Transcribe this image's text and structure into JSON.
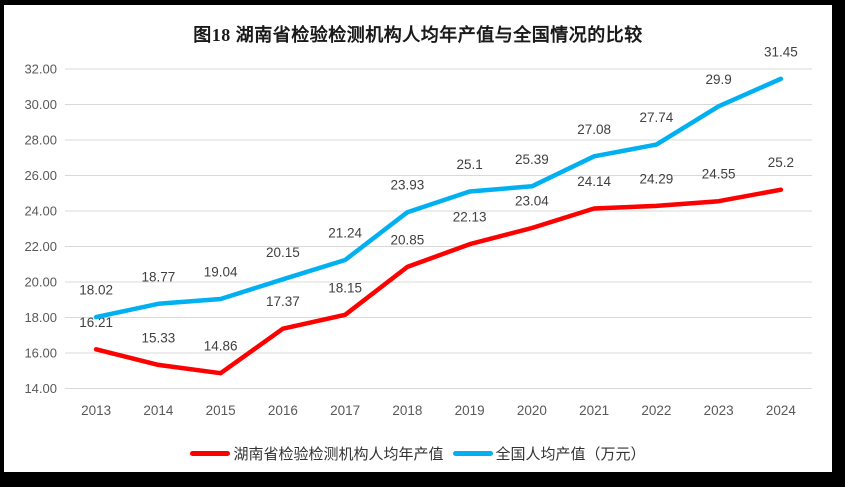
{
  "title": "图18 湖南省检验检测机构人均年产值与全国情况的比较",
  "colors": {
    "hunan_line": "#fe0000",
    "national_line": "#00b0f0",
    "gridline": "#d9d9d9",
    "axis_text": "#595959",
    "data_label_text": "#404040",
    "frame": "#000000",
    "background": "#ffffff"
  },
  "legend": [
    {
      "label": "湖南省检验检测机构人均年产值",
      "color": "#fe0000"
    },
    {
      "label": "全国人均产值（万元）",
      "color": "#00b0f0"
    }
  ],
  "chart_data": {
    "type": "line",
    "title": "图18 湖南省检验检测机构人均年产值与全国情况的比较",
    "categories": [
      "2013",
      "2014",
      "2015",
      "2016",
      "2017",
      "2018",
      "2019",
      "2020",
      "2021",
      "2022",
      "2023",
      "2024"
    ],
    "series": [
      {
        "name": "湖南省检验检测机构人均年产值",
        "color": "#fe0000",
        "values": [
          16.21,
          15.33,
          14.86,
          17.37,
          18.15,
          20.85,
          22.13,
          23.04,
          24.14,
          24.29,
          24.55,
          25.2
        ],
        "labels": [
          "16.21",
          "15.33",
          "14.86",
          "17.37",
          "18.15",
          "20.85",
          "22.13",
          "23.04",
          "24.14",
          "24.29",
          "24.55",
          "25.2"
        ]
      },
      {
        "name": "全国人均产值（万元）",
        "color": "#00b0f0",
        "values": [
          18.02,
          18.77,
          19.04,
          20.15,
          21.24,
          23.93,
          25.1,
          25.39,
          27.08,
          27.74,
          29.9,
          31.45
        ],
        "labels": [
          "18.02",
          "18.77",
          "19.04",
          "20.15",
          "21.24",
          "23.93",
          "25.1",
          "25.39",
          "27.08",
          "27.74",
          "29.9",
          "31.45"
        ]
      }
    ],
    "xlabel": "",
    "ylabel": "",
    "ylim": [
      14,
      32
    ],
    "ytick_step": 2,
    "yticks": [
      "32.00",
      "30.00",
      "28.00",
      "26.00",
      "24.00",
      "22.00",
      "20.00",
      "18.00",
      "16.00",
      "14.00"
    ],
    "grid": true,
    "legend_position": "bottom",
    "data_labels": true
  }
}
